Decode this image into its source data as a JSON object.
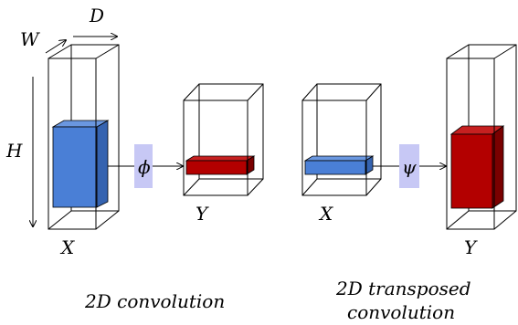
{
  "labels": {
    "D": "D",
    "W": "W",
    "H": "H",
    "X_left": "X",
    "Y_mid": "Y",
    "X_mid": "X",
    "Y_right": "Y"
  },
  "operators": {
    "phi": "ϕ",
    "psi": "ψ"
  },
  "captions": {
    "conv": "2D convolution",
    "transposed_line1": "2D transposed",
    "transposed_line2": "convolution"
  },
  "colors": {
    "blue": "#4a7fd6",
    "blue_dark": "#3563b0",
    "red": "#b30000",
    "red_dark": "#7a0000",
    "op_box": "#c7c8f5"
  }
}
